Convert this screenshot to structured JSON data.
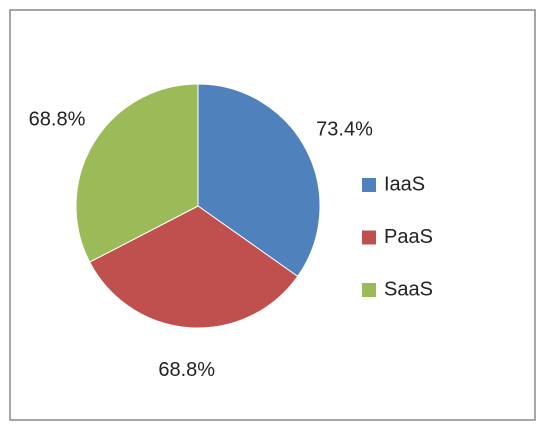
{
  "chart_data": {
    "type": "pie",
    "categories": [
      "IaaS",
      "PaaS",
      "SaaS"
    ],
    "values": [
      73.4,
      68.8,
      68.8
    ],
    "value_labels": [
      "73.4%",
      "68.8%",
      "68.8%"
    ],
    "colors": [
      "#4f81bd",
      "#c0504d",
      "#9bbb59"
    ],
    "legend": "right"
  }
}
